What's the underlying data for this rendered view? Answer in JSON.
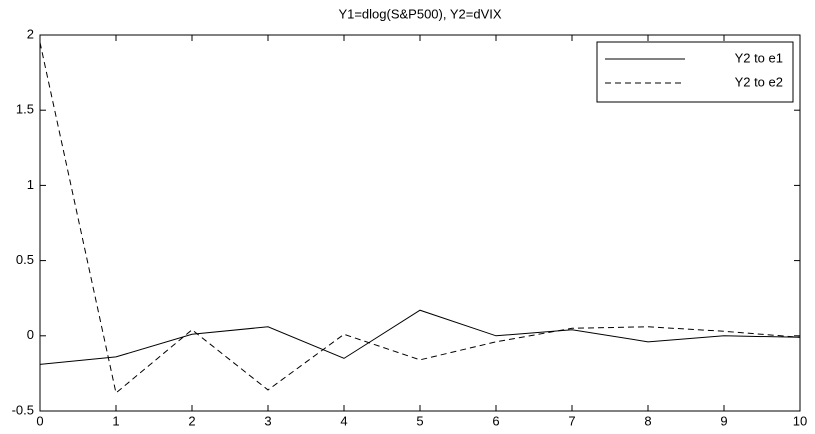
{
  "chart_data": {
    "type": "line",
    "title": "Y1=dlog(S&P500), Y2=dVIX",
    "x": [
      0,
      1,
      2,
      3,
      4,
      5,
      6,
      7,
      8,
      9,
      10
    ],
    "series": [
      {
        "name": "Y2 to e1",
        "color": "#000000",
        "dash": "solid",
        "values": [
          -0.19,
          -0.14,
          0.01,
          0.06,
          -0.15,
          0.17,
          0.0,
          0.04,
          -0.04,
          0.0,
          -0.01
        ]
      },
      {
        "name": "Y2 to e2",
        "color": "#000000",
        "dash": "dashed",
        "values": [
          1.95,
          -0.38,
          0.04,
          -0.36,
          0.01,
          -0.16,
          -0.04,
          0.05,
          0.06,
          0.03,
          -0.01
        ]
      }
    ],
    "xlim": [
      0,
      10
    ],
    "xticks": [
      0,
      1,
      2,
      3,
      4,
      5,
      6,
      7,
      8,
      9,
      10
    ],
    "ylim": [
      -0.5,
      2
    ],
    "yticks": [
      -0.5,
      0,
      0.5,
      1,
      1.5,
      2
    ],
    "grid": false,
    "legend": "top-right"
  }
}
